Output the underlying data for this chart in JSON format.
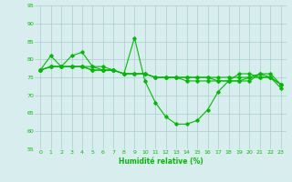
{
  "x": [
    0,
    1,
    2,
    3,
    4,
    5,
    6,
    7,
    8,
    9,
    10,
    11,
    12,
    13,
    14,
    15,
    16,
    17,
    18,
    19,
    20,
    21,
    22,
    23
  ],
  "line1": [
    77,
    81,
    78,
    81,
    82,
    78,
    78,
    77,
    76,
    86,
    74,
    68,
    64,
    62,
    62,
    63,
    66,
    71,
    74,
    76,
    76,
    75,
    75,
    73
  ],
  "line2": [
    77,
    78,
    78,
    78,
    78,
    78,
    77,
    77,
    76,
    76,
    76,
    75,
    75,
    75,
    75,
    75,
    75,
    75,
    75,
    75,
    75,
    75,
    75,
    73
  ],
  "line3": [
    77,
    78,
    78,
    78,
    78,
    77,
    77,
    77,
    76,
    76,
    76,
    75,
    75,
    75,
    75,
    75,
    75,
    74,
    74,
    74,
    75,
    76,
    76,
    73
  ],
  "line4": [
    77,
    78,
    78,
    78,
    78,
    77,
    77,
    77,
    76,
    76,
    76,
    75,
    75,
    75,
    74,
    74,
    74,
    74,
    74,
    74,
    74,
    76,
    75,
    72
  ],
  "xlabel": "Humidité relative (%)",
  "ylim": [
    55,
    95
  ],
  "yticks": [
    55,
    60,
    65,
    70,
    75,
    80,
    85,
    90,
    95
  ],
  "xticks": [
    0,
    1,
    2,
    3,
    4,
    5,
    6,
    7,
    8,
    9,
    10,
    11,
    12,
    13,
    14,
    15,
    16,
    17,
    18,
    19,
    20,
    21,
    22,
    23
  ],
  "line_color": "#00bb00",
  "bg_color": "#d8eeee",
  "grid_color": "#aacccc"
}
